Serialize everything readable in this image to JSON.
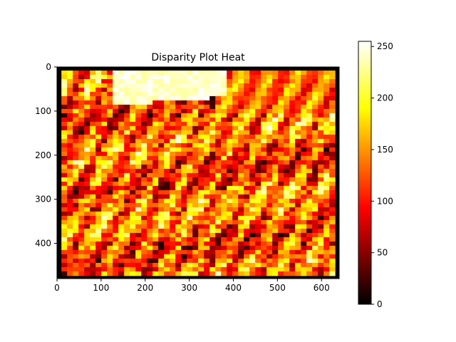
{
  "chart_data": {
    "type": "heatmap",
    "title": "Disparity Plot Heat",
    "xlabel": "",
    "ylabel": "",
    "x_range": [
      0,
      640
    ],
    "y_range": [
      0,
      480
    ],
    "y_inverted": true,
    "x_ticks": [
      0,
      100,
      200,
      300,
      400,
      500,
      600
    ],
    "y_ticks": [
      0,
      100,
      200,
      300,
      400
    ],
    "colormap": "hot",
    "colorbar": {
      "range": [
        0,
        255
      ],
      "ticks": [
        0,
        50,
        100,
        150,
        200,
        250
      ],
      "colors": [
        "#000000",
        "#ff0000",
        "#ffff00",
        "#ffffff"
      ]
    },
    "grid": false,
    "legend": "none",
    "note_values": "disparity map, values 0-255, black border frame"
  }
}
